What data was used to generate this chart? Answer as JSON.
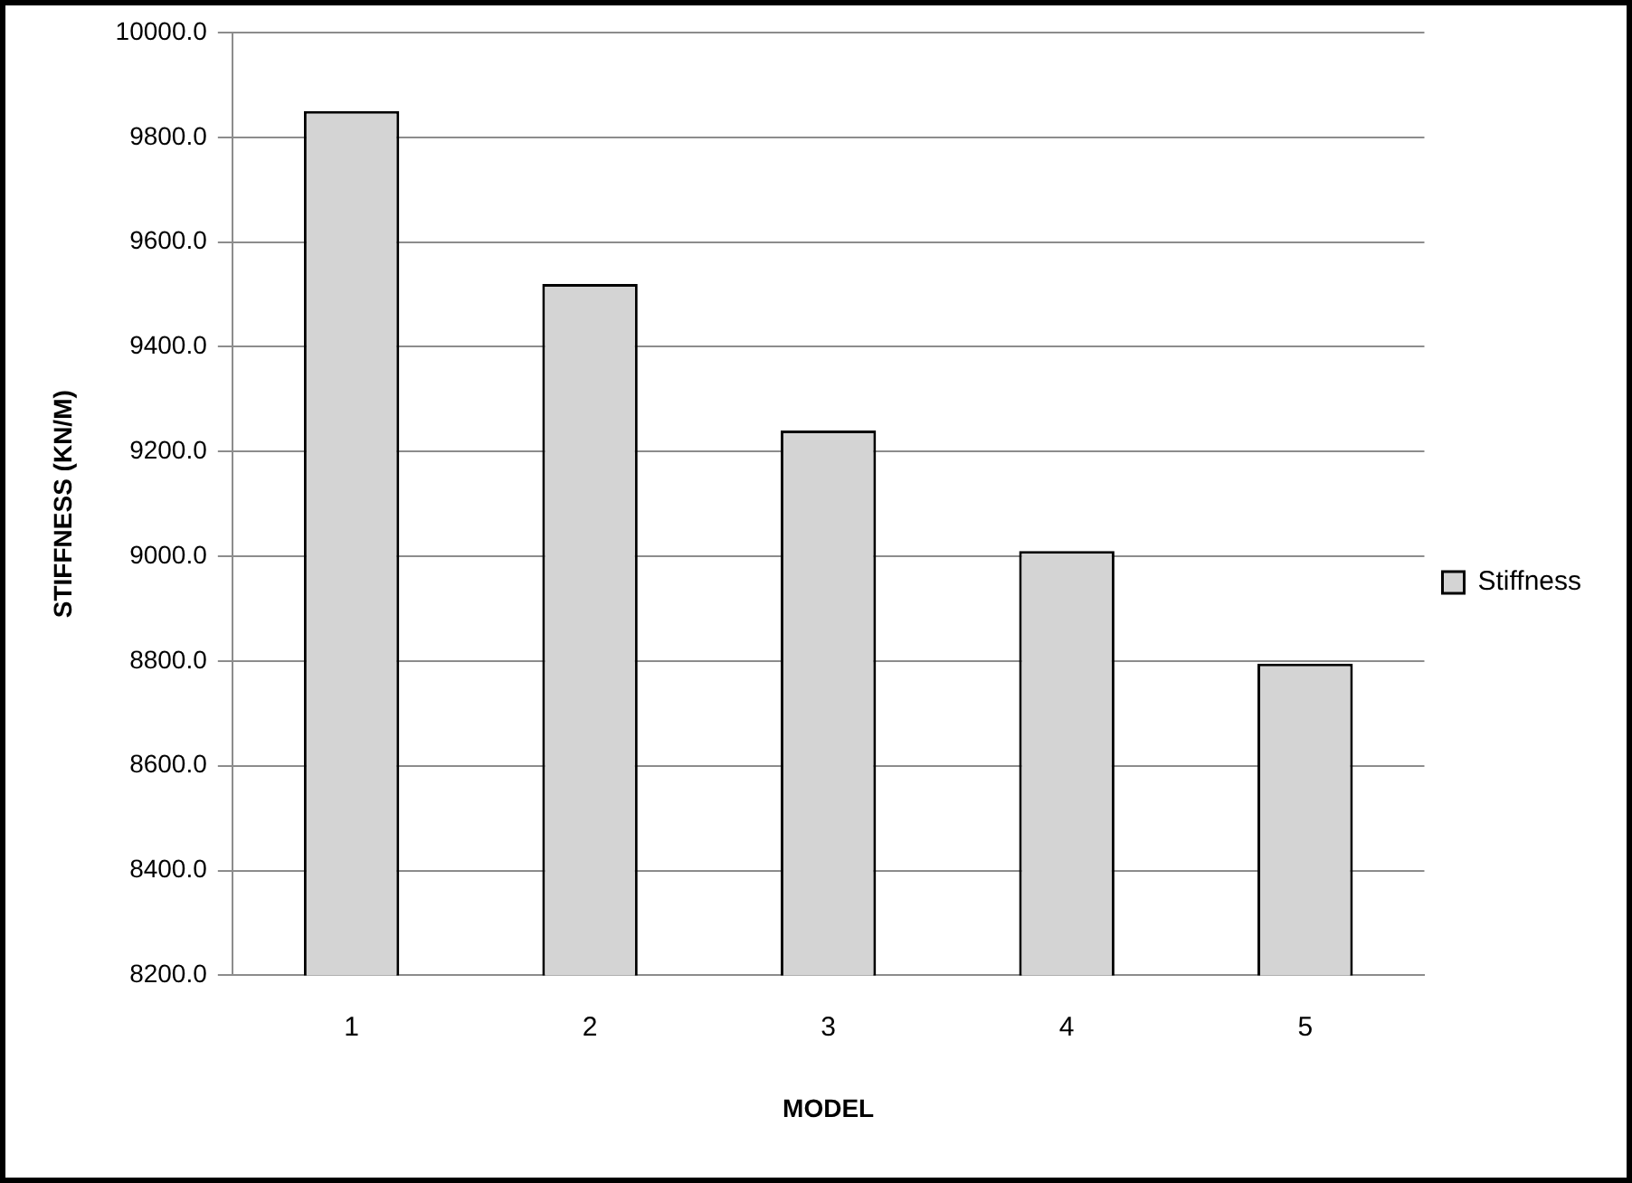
{
  "chart_data": {
    "type": "bar",
    "xlabel": "MODEL",
    "ylabel": "STIFFNESS (KN/M)",
    "categories": [
      "1",
      "2",
      "3",
      "4",
      "5"
    ],
    "series": [
      {
        "name": "Stiffness",
        "color": "#d4d4d4",
        "values": [
          9850,
          9520,
          9240,
          9010,
          8795
        ]
      }
    ],
    "ylim": [
      8200,
      10000
    ],
    "yticks": [
      {
        "value": 8200,
        "label": "8200.0"
      },
      {
        "value": 8400,
        "label": "8400.0"
      },
      {
        "value": 8600,
        "label": "8600.0"
      },
      {
        "value": 8800,
        "label": "8800.0"
      },
      {
        "value": 9000,
        "label": "9000.0"
      },
      {
        "value": 9200,
        "label": "9200.0"
      },
      {
        "value": 9400,
        "label": "9400.0"
      },
      {
        "value": 9600,
        "label": "9600.0"
      },
      {
        "value": 9800,
        "label": "9800.0"
      },
      {
        "value": 10000,
        "label": "10000.0"
      }
    ],
    "grid": "y",
    "legend": "right"
  }
}
